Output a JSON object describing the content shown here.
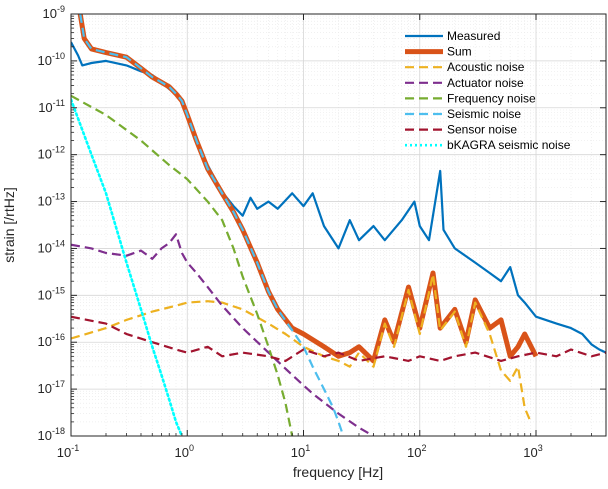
{
  "chart_data": {
    "type": "line",
    "xlabel": "frequency [Hz]",
    "ylabel": "strain [/rtHz]",
    "xscale": "log",
    "yscale": "log",
    "xlim": [
      0.1,
      4000
    ],
    "ylim": [
      1e-18,
      1e-09
    ],
    "grid": true,
    "legend_position": "top-right",
    "x_ticks": [
      {
        "base": "10",
        "exp": "-1",
        "value": 0.1
      },
      {
        "base": "10",
        "exp": "0",
        "value": 1
      },
      {
        "base": "10",
        "exp": "1",
        "value": 10
      },
      {
        "base": "10",
        "exp": "2",
        "value": 100
      },
      {
        "base": "10",
        "exp": "3",
        "value": 1000
      }
    ],
    "y_ticks": [
      {
        "base": "10",
        "exp": "-18",
        "value": 1e-18
      },
      {
        "base": "10",
        "exp": "-17",
        "value": 1e-17
      },
      {
        "base": "10",
        "exp": "-16",
        "value": 1e-16
      },
      {
        "base": "10",
        "exp": "-15",
        "value": 1e-15
      },
      {
        "base": "10",
        "exp": "-14",
        "value": 1e-14
      },
      {
        "base": "10",
        "exp": "-13",
        "value": 1e-13
      },
      {
        "base": "10",
        "exp": "-12",
        "value": 1e-12
      },
      {
        "base": "10",
        "exp": "-11",
        "value": 1e-11
      },
      {
        "base": "10",
        "exp": "-10",
        "value": 1e-10
      },
      {
        "base": "10",
        "exp": "-9",
        "value": 1e-09
      }
    ],
    "series": [
      {
        "name": "Measured",
        "color": "#0072BD",
        "style": "solid",
        "width": 2.2,
        "points": [
          [
            0.1,
            2.5e-10
          ],
          [
            0.115,
            1.3e-10
          ],
          [
            0.125,
            8e-11
          ],
          [
            0.15,
            9e-11
          ],
          [
            0.2,
            1e-10
          ],
          [
            0.3,
            8e-11
          ],
          [
            0.4,
            6e-11
          ],
          [
            0.5,
            5e-11
          ],
          [
            0.6,
            3.5e-11
          ],
          [
            0.7,
            2.5e-11
          ],
          [
            0.8,
            2e-11
          ],
          [
            0.9,
            1.4e-11
          ],
          [
            1.0,
            7e-12
          ],
          [
            1.2,
            2e-12
          ],
          [
            1.5,
            6e-13
          ],
          [
            2.0,
            1.6e-13
          ],
          [
            2.5,
            8e-14
          ],
          [
            3.0,
            5e-14
          ],
          [
            3.5,
            1.2e-13
          ],
          [
            4.0,
            7e-14
          ],
          [
            5.0,
            1e-13
          ],
          [
            6.0,
            7e-14
          ],
          [
            8.0,
            1.5e-13
          ],
          [
            10,
            8e-14
          ],
          [
            12,
            1.5e-13
          ],
          [
            15,
            3e-14
          ],
          [
            20,
            1e-14
          ],
          [
            25,
            4e-14
          ],
          [
            30,
            1.5e-14
          ],
          [
            40,
            3e-14
          ],
          [
            50,
            1.5e-14
          ],
          [
            70,
            4e-14
          ],
          [
            90,
            1e-13
          ],
          [
            100,
            3e-14
          ],
          [
            120,
            1.5e-14
          ],
          [
            150,
            4.5e-13
          ],
          [
            160,
            2.5e-14
          ],
          [
            200,
            1e-14
          ],
          [
            300,
            5e-15
          ],
          [
            400,
            3e-15
          ],
          [
            500,
            2e-15
          ],
          [
            600,
            4e-15
          ],
          [
            700,
            1e-15
          ],
          [
            800,
            7e-16
          ],
          [
            1000,
            3.5e-16
          ],
          [
            1500,
            2.5e-16
          ],
          [
            2000,
            2e-16
          ],
          [
            2500,
            1.5e-16
          ],
          [
            3000,
            9e-17
          ],
          [
            3500,
            7e-17
          ],
          [
            4000,
            6e-17
          ]
        ]
      },
      {
        "name": "Sum",
        "color": "#D95319",
        "style": "solid",
        "width": 5,
        "points": [
          [
            0.12,
            1e-09
          ],
          [
            0.13,
            3e-10
          ],
          [
            0.15,
            1.8e-10
          ],
          [
            0.2,
            1.5e-10
          ],
          [
            0.3,
            1.2e-10
          ],
          [
            0.4,
            7e-11
          ],
          [
            0.5,
            4.5e-11
          ],
          [
            0.6,
            3.5e-11
          ],
          [
            0.7,
            2.8e-11
          ],
          [
            0.8,
            2e-11
          ],
          [
            0.9,
            1.4e-11
          ],
          [
            1.0,
            7e-12
          ],
          [
            1.2,
            2e-12
          ],
          [
            1.5,
            5e-13
          ],
          [
            2.0,
            1.5e-13
          ],
          [
            2.5,
            6e-14
          ],
          [
            3.0,
            2.5e-14
          ],
          [
            4.0,
            5e-15
          ],
          [
            5.0,
            1.2e-15
          ],
          [
            6.0,
            5e-16
          ],
          [
            8.0,
            2e-16
          ],
          [
            10,
            1.5e-16
          ],
          [
            15,
            8e-17
          ],
          [
            20,
            5e-17
          ],
          [
            25,
            6e-17
          ],
          [
            30,
            8e-17
          ],
          [
            40,
            4e-17
          ],
          [
            50,
            3e-16
          ],
          [
            60,
            1e-16
          ],
          [
            80,
            1.5e-15
          ],
          [
            100,
            2e-16
          ],
          [
            130,
            3e-15
          ],
          [
            150,
            2e-16
          ],
          [
            200,
            5e-16
          ],
          [
            250,
            1e-16
          ],
          [
            300,
            8e-16
          ],
          [
            400,
            2e-16
          ],
          [
            500,
            3e-16
          ],
          [
            600,
            5e-17
          ],
          [
            700,
            8e-17
          ],
          [
            800,
            1.5e-16
          ],
          [
            1000,
            5e-17
          ]
        ]
      },
      {
        "name": "Acoustic noise",
        "color": "#EDB120",
        "style": "dashed",
        "width": 2.2,
        "points": [
          [
            0.1,
            1.2e-16
          ],
          [
            0.2,
            2e-16
          ],
          [
            0.3,
            3e-16
          ],
          [
            0.5,
            4.5e-16
          ],
          [
            0.8,
            6e-16
          ],
          [
            1.0,
            7e-16
          ],
          [
            1.5,
            7.5e-16
          ],
          [
            2.0,
            7e-16
          ],
          [
            3.0,
            5e-16
          ],
          [
            5.0,
            2.5e-16
          ],
          [
            7.0,
            1.5e-16
          ],
          [
            10,
            8e-17
          ],
          [
            15,
            5e-17
          ],
          [
            20,
            4e-17
          ],
          [
            25,
            3e-17
          ],
          [
            30,
            6e-17
          ],
          [
            40,
            3e-17
          ],
          [
            50,
            2.5e-16
          ],
          [
            60,
            8e-17
          ],
          [
            80,
            1.3e-15
          ],
          [
            100,
            1.5e-16
          ],
          [
            130,
            2.8e-15
          ],
          [
            150,
            1.8e-16
          ],
          [
            200,
            4.5e-16
          ],
          [
            250,
            8e-17
          ],
          [
            300,
            7e-16
          ],
          [
            400,
            1.5e-16
          ],
          [
            500,
            2.5e-17
          ],
          [
            600,
            1.5e-17
          ],
          [
            700,
            3e-17
          ],
          [
            800,
            4e-18
          ],
          [
            900,
            2e-18
          ]
        ]
      },
      {
        "name": "Actuator noise",
        "color": "#7E2F8E",
        "style": "dashed",
        "width": 2.2,
        "points": [
          [
            0.1,
            1.2e-14
          ],
          [
            0.15,
            1e-14
          ],
          [
            0.2,
            8e-15
          ],
          [
            0.3,
            7e-15
          ],
          [
            0.4,
            9e-15
          ],
          [
            0.5,
            6e-15
          ],
          [
            0.6,
            1e-14
          ],
          [
            0.7,
            1.3e-14
          ],
          [
            0.8,
            2e-14
          ],
          [
            0.9,
            8e-15
          ],
          [
            1.0,
            5e-15
          ],
          [
            1.2,
            3e-15
          ],
          [
            1.5,
            1.5e-15
          ],
          [
            2.0,
            6e-16
          ],
          [
            3.0,
            2e-16
          ],
          [
            5.0,
            6e-17
          ],
          [
            8.0,
            2e-17
          ],
          [
            12,
            8e-18
          ],
          [
            20,
            3e-18
          ],
          [
            30,
            1.5e-18
          ],
          [
            40,
            1e-18
          ]
        ]
      },
      {
        "name": "Frequency noise",
        "color": "#77AC30",
        "style": "dashed",
        "width": 2.2,
        "points": [
          [
            0.1,
            1.8e-11
          ],
          [
            0.2,
            7e-12
          ],
          [
            0.4,
            2e-12
          ],
          [
            0.7,
            6e-13
          ],
          [
            1.0,
            3e-13
          ],
          [
            1.5,
            1e-13
          ],
          [
            2.0,
            4e-14
          ],
          [
            2.5,
            1e-14
          ],
          [
            3.0,
            2.5e-15
          ],
          [
            4.0,
            4e-16
          ],
          [
            5.0,
            8e-17
          ],
          [
            6.0,
            2e-17
          ],
          [
            7.0,
            5e-18
          ],
          [
            8.0,
            1e-18
          ]
        ]
      },
      {
        "name": "Seismic noise",
        "color": "#4DBEEE",
        "style": "dashed",
        "width": 2.2,
        "points": [
          [
            0.12,
            1e-09
          ],
          [
            0.13,
            3e-10
          ],
          [
            0.15,
            1.8e-10
          ],
          [
            0.2,
            1.5e-10
          ],
          [
            0.3,
            1.2e-10
          ],
          [
            0.4,
            7e-11
          ],
          [
            0.5,
            4.5e-11
          ],
          [
            0.6,
            3.5e-11
          ],
          [
            0.7,
            2.8e-11
          ],
          [
            0.8,
            2e-11
          ],
          [
            0.9,
            1.4e-11
          ],
          [
            1.0,
            7e-12
          ],
          [
            1.2,
            2e-12
          ],
          [
            1.5,
            5e-13
          ],
          [
            2.0,
            1.5e-13
          ],
          [
            2.5,
            6e-14
          ],
          [
            3.0,
            2.5e-14
          ],
          [
            4.0,
            5e-15
          ],
          [
            5.0,
            1.2e-15
          ],
          [
            6.0,
            5e-16
          ],
          [
            8.0,
            1.8e-16
          ],
          [
            10,
            8e-17
          ],
          [
            12,
            3e-17
          ],
          [
            15,
            1e-17
          ],
          [
            18,
            4e-18
          ],
          [
            20,
            2e-18
          ],
          [
            22,
            1e-18
          ]
        ]
      },
      {
        "name": "Sensor noise",
        "color": "#A2142F",
        "style": "dashed",
        "width": 2.2,
        "points": [
          [
            0.1,
            3.5e-16
          ],
          [
            0.2,
            2.5e-16
          ],
          [
            0.3,
            1.5e-16
          ],
          [
            0.5,
            1e-16
          ],
          [
            0.8,
            7e-17
          ],
          [
            1.0,
            6e-17
          ],
          [
            1.5,
            8e-17
          ],
          [
            2.0,
            5e-17
          ],
          [
            3.0,
            6e-17
          ],
          [
            5.0,
            5e-17
          ],
          [
            7.0,
            4e-17
          ],
          [
            10,
            7e-17
          ],
          [
            15,
            5e-17
          ],
          [
            20,
            6e-17
          ],
          [
            30,
            4e-17
          ],
          [
            50,
            5e-17
          ],
          [
            80,
            4e-17
          ],
          [
            100,
            5e-17
          ],
          [
            150,
            4e-17
          ],
          [
            200,
            5e-17
          ],
          [
            300,
            6e-17
          ],
          [
            500,
            4e-17
          ],
          [
            700,
            5e-17
          ],
          [
            1000,
            6e-17
          ],
          [
            1500,
            5e-17
          ],
          [
            2000,
            7e-17
          ],
          [
            3000,
            5e-17
          ],
          [
            4000,
            6e-17
          ]
        ]
      },
      {
        "name": "bKAGRA seismic noise",
        "color": "#00FFFF",
        "style": "dotted",
        "width": 2.6,
        "points": [
          [
            0.1,
            1.5e-11
          ],
          [
            0.15,
            1e-12
          ],
          [
            0.2,
            1.5e-13
          ],
          [
            0.3,
            5e-15
          ],
          [
            0.4,
            5e-16
          ],
          [
            0.5,
            8e-17
          ],
          [
            0.6,
            2e-17
          ],
          [
            0.7,
            6e-18
          ],
          [
            0.8,
            2e-18
          ],
          [
            0.9,
            1e-18
          ]
        ]
      }
    ]
  }
}
